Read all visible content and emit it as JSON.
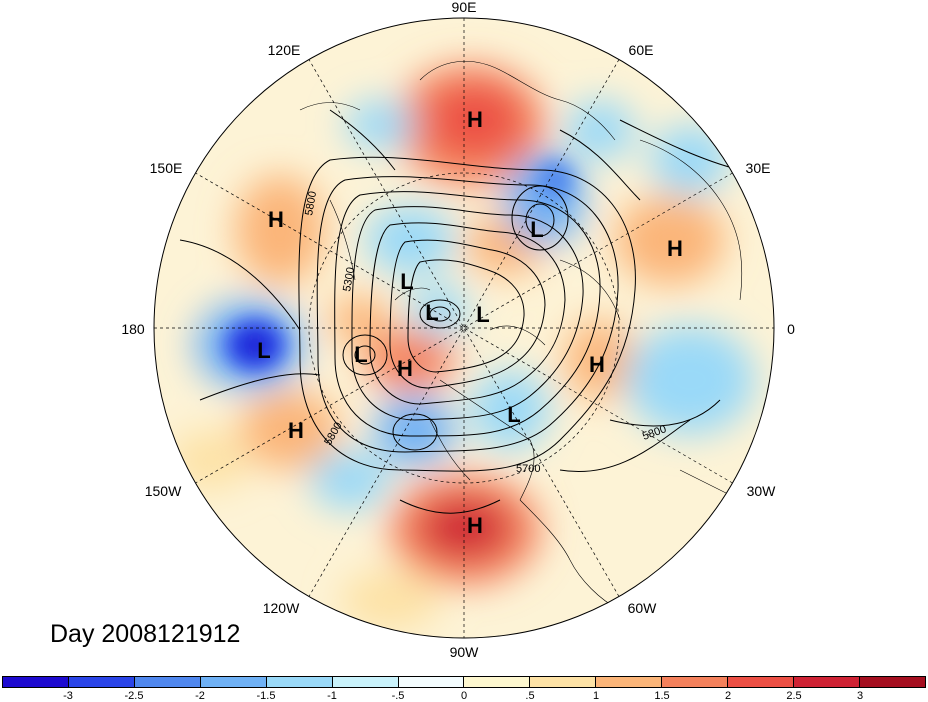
{
  "title": "Day 2008121912",
  "map": {
    "projection": "north-polar-stereographic",
    "longitude_labels": [
      {
        "text": "90E"
      },
      {
        "text": "60E"
      },
      {
        "text": "30E"
      },
      {
        "text": "0"
      },
      {
        "text": "30W"
      },
      {
        "text": "60W"
      },
      {
        "text": "90W"
      },
      {
        "text": "120W"
      },
      {
        "text": "150W"
      },
      {
        "text": "180"
      },
      {
        "text": "150E"
      },
      {
        "text": "120E"
      }
    ],
    "contour_labels": [
      "5800",
      "5300",
      "5800",
      "5700",
      "5800"
    ],
    "pressure_centers": [
      {
        "type": "H"
      },
      {
        "type": "H"
      },
      {
        "type": "H"
      },
      {
        "type": "H"
      },
      {
        "type": "H"
      },
      {
        "type": "H"
      },
      {
        "type": "H"
      },
      {
        "type": "L"
      },
      {
        "type": "L"
      },
      {
        "type": "L"
      },
      {
        "type": "L"
      },
      {
        "type": "L"
      },
      {
        "type": "L"
      },
      {
        "type": "L"
      }
    ]
  },
  "colorbar": {
    "colors": [
      "#1d0ad0",
      "#2a44e8",
      "#4f87ee",
      "#6fb1f5",
      "#9ad9f8",
      "#c9f2fb",
      "#f3fcfe",
      "#fdf7cf",
      "#fde2a6",
      "#fbb579",
      "#f4815c",
      "#ec4f44",
      "#cf2234",
      "#a50f20"
    ],
    "tick_labels": [
      "-3",
      "-2.5",
      "-2",
      "-1.5",
      "-1",
      "-.5",
      "0",
      ".5",
      "1",
      "1.5",
      "2",
      "2.5",
      "3"
    ]
  },
  "colors": {
    "background": "#ffffff",
    "line": "#000000",
    "negative_anomaly": "#4f87ee",
    "positive_anomaly": "#ec4f44"
  }
}
